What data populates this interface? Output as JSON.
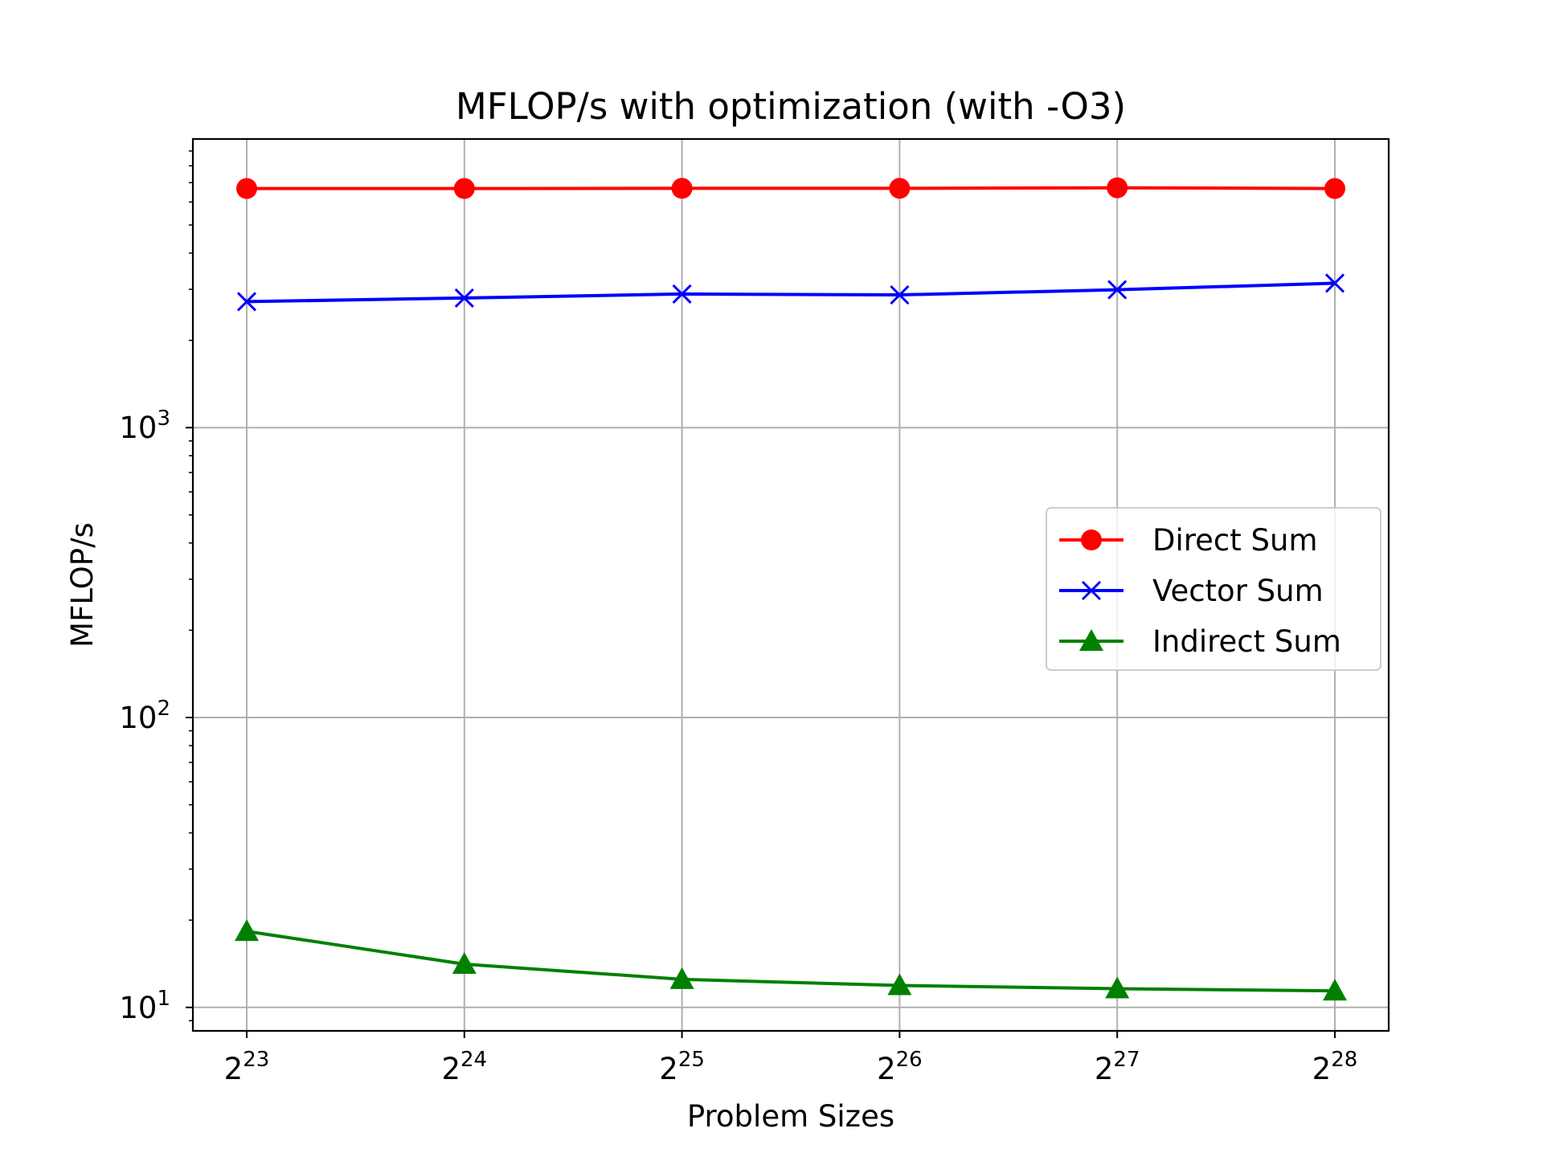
{
  "chart_data": {
    "type": "line",
    "title": "MFLOP/s with optimization (with -O3)",
    "xlabel": "Problem Sizes",
    "ylabel": "MFLOP/s",
    "x": [
      23,
      24,
      25,
      26,
      27,
      28
    ],
    "x_tick_labels": [
      {
        "base": "2",
        "exp": "23"
      },
      {
        "base": "2",
        "exp": "24"
      },
      {
        "base": "2",
        "exp": "25"
      },
      {
        "base": "2",
        "exp": "26"
      },
      {
        "base": "2",
        "exp": "27"
      },
      {
        "base": "2",
        "exp": "28"
      }
    ],
    "y_scale": "log",
    "y_ticks": [
      {
        "value": 10,
        "base": "10",
        "exp": "1"
      },
      {
        "value": 100,
        "base": "10",
        "exp": "2"
      },
      {
        "value": 1000,
        "base": "10",
        "exp": "3"
      }
    ],
    "ylim": [
      8.3,
      9900
    ],
    "grid": true,
    "legend_position": "center-right",
    "series": [
      {
        "name": "Direct Sum",
        "color": "#ff0000",
        "marker": "circle",
        "values": [
          6680,
          6680,
          6690,
          6690,
          6720,
          6680
        ]
      },
      {
        "name": "Vector Sum",
        "color": "#0000ff",
        "marker": "x",
        "values": [
          2720,
          2800,
          2890,
          2870,
          2990,
          3150
        ]
      },
      {
        "name": "Indirect Sum",
        "color": "#008000",
        "marker": "triangle",
        "values": [
          18.3,
          14.1,
          12.5,
          11.9,
          11.6,
          11.4
        ]
      }
    ]
  }
}
